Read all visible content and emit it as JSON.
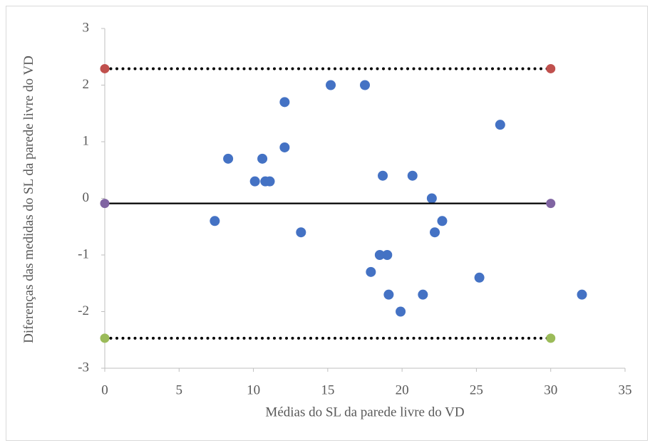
{
  "chart_data": {
    "type": "scatter",
    "xlabel": "Médias do SL da parede livre do VD",
    "ylabel": "Diferenças das medidas do SL da parede livre do VD",
    "xlim": [
      0,
      35
    ],
    "xticks": [
      0,
      5,
      10,
      15,
      20,
      25,
      30,
      35
    ],
    "ylim": [
      -3,
      3
    ],
    "yticks": [
      -3,
      -2,
      -1,
      0,
      1,
      2,
      3
    ],
    "series": [
      {
        "color": "#4472c4",
        "line": "none",
        "x": [
          7.4,
          8.3,
          10.1,
          10.6,
          10.8,
          11.1,
          12.1,
          12.1,
          13.2,
          15.2,
          17.5,
          17.9,
          18.5,
          18.7,
          19.0,
          19.1,
          19.9,
          20.7,
          21.4,
          22.0,
          22.2,
          22.7,
          25.2,
          26.6,
          32.1
        ],
        "values": [
          -0.4,
          0.7,
          0.3,
          0.7,
          0.3,
          0.3,
          1.7,
          0.9,
          -0.6,
          2.0,
          2.0,
          -1.3,
          -1.0,
          0.4,
          -1.0,
          -1.7,
          -2.0,
          0.4,
          -1.7,
          0.0,
          -0.6,
          -0.4,
          -1.4,
          1.3,
          -1.7
        ]
      },
      {
        "color": "#c0504d",
        "line": "dotted",
        "x": [
          0,
          30
        ],
        "values": [
          2.29,
          2.29
        ]
      },
      {
        "color": "#8064a2",
        "line": "solid",
        "x": [
          0,
          30
        ],
        "values": [
          -0.09,
          -0.09
        ]
      },
      {
        "color": "#9bbb59",
        "line": "dotted",
        "x": [
          0,
          30
        ],
        "values": [
          -2.47,
          -2.47
        ]
      }
    ]
  }
}
